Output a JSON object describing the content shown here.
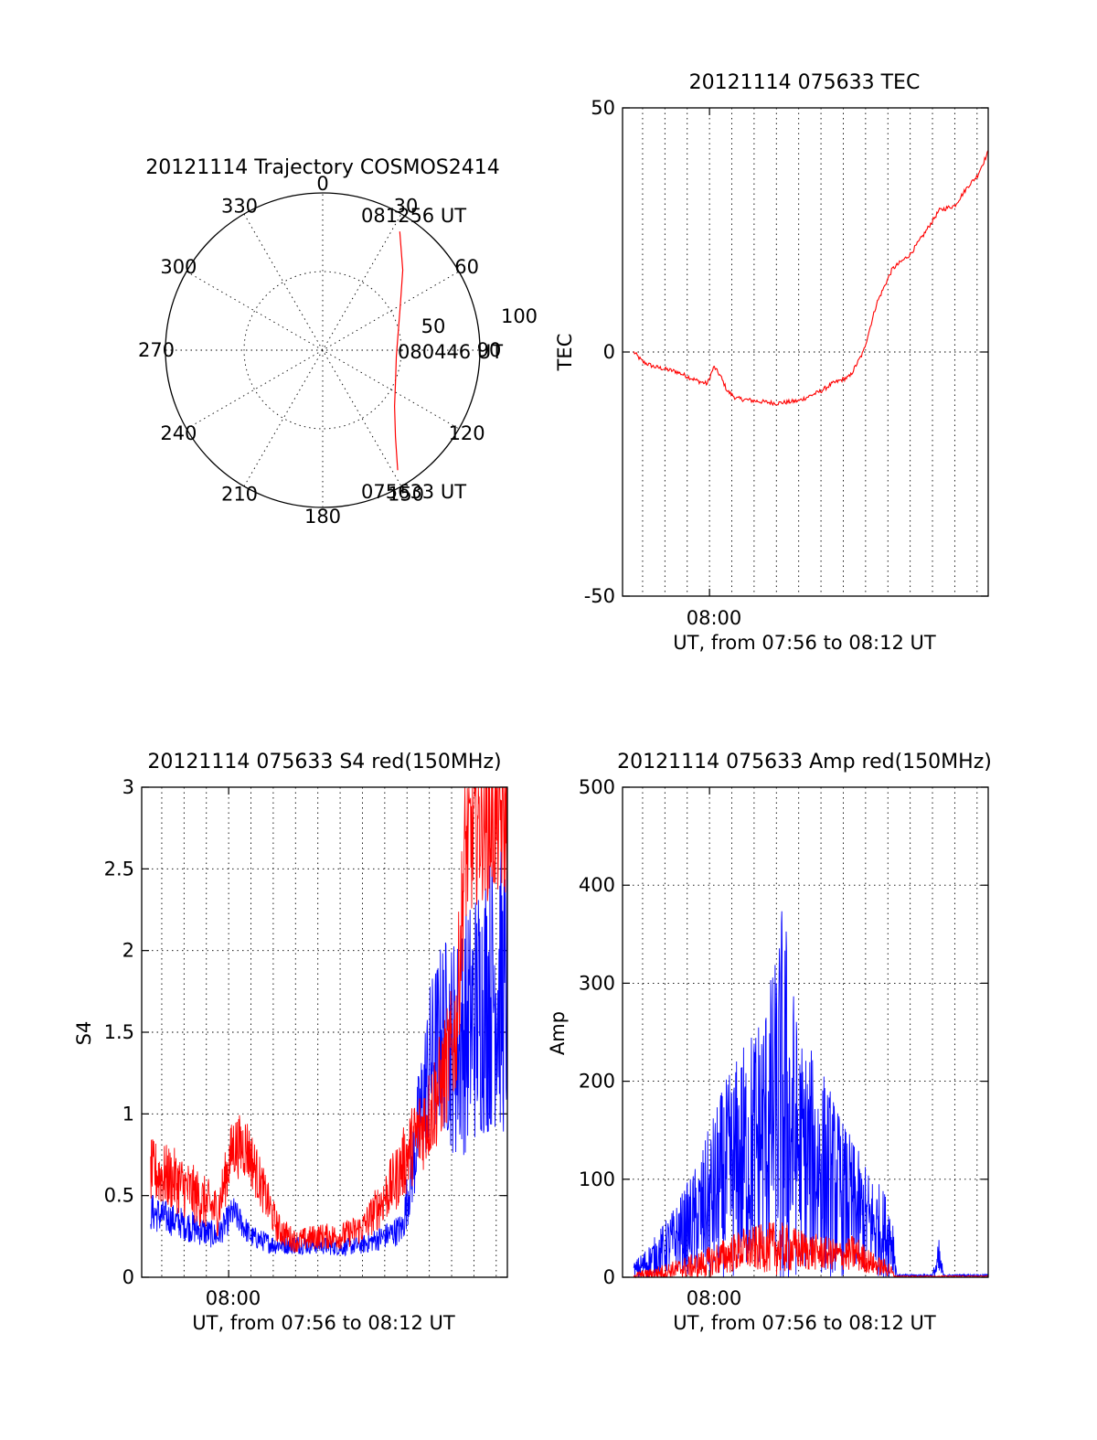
{
  "chart_data": [
    {
      "id": "polar",
      "type": "polar-trajectory",
      "title": "20121114 Trajectory COSMOS2414",
      "azimuth_labels": [
        "0",
        "30",
        "60",
        "90",
        "120",
        "150",
        "180",
        "210",
        "240",
        "270",
        "300",
        "330"
      ],
      "radial_labels": [
        "50",
        "100"
      ],
      "rlim": [
        0,
        100
      ],
      "trajectory": {
        "color": "#ff0000",
        "start_label": "075633 UT",
        "mid_label": "080446 UT",
        "end_label": "081256 UT",
        "points": [
          {
            "az": 148,
            "zen": 90
          },
          {
            "az": 140,
            "zen": 72
          },
          {
            "az": 128,
            "zen": 58
          },
          {
            "az": 112,
            "zen": 50
          },
          {
            "az": 95,
            "zen": 47
          },
          {
            "az": 78,
            "zen": 49
          },
          {
            "az": 60,
            "zen": 57
          },
          {
            "az": 45,
            "zen": 72
          },
          {
            "az": 33,
            "zen": 90
          }
        ]
      }
    },
    {
      "id": "tec",
      "type": "line",
      "title": "20121114 075633 TEC",
      "xlabel": "UT, from 07:56 to 08:12 UT",
      "ylabel": "TEC",
      "xlim": [
        -3.9,
        12.5
      ],
      "ylim": [
        -50,
        50
      ],
      "yticks": [
        -50,
        0,
        50
      ],
      "xtick_label": "08:00",
      "grid": true,
      "series": [
        {
          "color": "#ff0000",
          "x": [
            -3.4,
            -3.0,
            -2.5,
            -1.5,
            -0.5,
            -0.1,
            0.2,
            0.5,
            0.8,
            1.2,
            2.0,
            3.0,
            4.0,
            5.0,
            5.5,
            6.3,
            6.9,
            7.5,
            8.2,
            9.0,
            9.6,
            10.3,
            11.0,
            11.6,
            12.0,
            12.5
          ],
          "y": [
            0,
            -2,
            -3,
            -4,
            -6,
            -6.5,
            -3,
            -5,
            -8,
            -9.5,
            -10,
            -10.5,
            -10,
            -8,
            -6.5,
            -5,
            0,
            10,
            17,
            20,
            24,
            29,
            30,
            34,
            36,
            41
          ]
        }
      ]
    },
    {
      "id": "s4",
      "type": "line",
      "title": "20121114 075633 S4 red(150MHz)",
      "xlabel": "UT, from 07:56 to 08:12 UT",
      "ylabel": "S4",
      "xlim": [
        -3.9,
        12.5
      ],
      "ylim": [
        0,
        3
      ],
      "yticks": [
        0,
        0.5,
        1,
        1.5,
        2,
        2.5,
        3
      ],
      "xtick_label": "08:00",
      "grid": true,
      "series": [
        {
          "color": "#0000ff",
          "x": [
            -3.5,
            -2.5,
            -1.5,
            -0.5,
            0.2,
            1.0,
            2.0,
            3.0,
            4.0,
            5.0,
            6.0,
            7.0,
            7.8,
            8.5,
            9.0,
            9.6,
            10.2,
            11.0,
            12.0,
            12.5
          ],
          "y": [
            0.4,
            0.35,
            0.3,
            0.25,
            0.4,
            0.25,
            0.2,
            0.2,
            0.2,
            0.18,
            0.2,
            0.25,
            0.3,
            0.9,
            1.3,
            1.5,
            1.4,
            1.6,
            1.8,
            1.7
          ],
          "amp": [
            0.12,
            0.1,
            0.1,
            0.08,
            0.1,
            0.07,
            0.06,
            0.06,
            0.06,
            0.05,
            0.06,
            0.08,
            0.1,
            0.35,
            0.5,
            0.6,
            0.7,
            0.8,
            0.9,
            0.9
          ]
        },
        {
          "color": "#ff0000",
          "x": [
            -3.5,
            -2.5,
            -1.5,
            -0.5,
            0.2,
            0.8,
            1.5,
            2.2,
            3.0,
            4.0,
            5.0,
            6.0,
            6.8,
            7.5,
            8.2,
            9.0,
            9.6,
            10.2,
            10.6,
            11.2,
            12.0,
            12.5
          ],
          "y": [
            0.65,
            0.6,
            0.5,
            0.4,
            0.8,
            0.8,
            0.55,
            0.3,
            0.22,
            0.25,
            0.25,
            0.3,
            0.45,
            0.6,
            0.8,
            1.0,
            1.2,
            1.5,
            2.6,
            2.8,
            2.8,
            2.8
          ],
          "amp": [
            0.2,
            0.2,
            0.18,
            0.15,
            0.2,
            0.2,
            0.15,
            0.1,
            0.07,
            0.08,
            0.08,
            0.1,
            0.15,
            0.2,
            0.25,
            0.3,
            0.35,
            0.4,
            0.5,
            0.5,
            0.5,
            0.5
          ]
        }
      ]
    },
    {
      "id": "amp",
      "type": "line",
      "title": "20121114 075633 Amp red(150MHz)",
      "xlabel": "UT, from 07:56 to 08:12 UT",
      "ylabel": "Amp",
      "xlim": [
        -3.9,
        12.5
      ],
      "ylim": [
        0,
        500
      ],
      "yticks": [
        0,
        100,
        200,
        300,
        400,
        500
      ],
      "xtick_label": "08:00",
      "grid": true,
      "series": [
        {
          "color": "#0000ff",
          "x": [
            -3.4,
            -2.5,
            -1.5,
            -0.5,
            0.5,
            1.5,
            2.5,
            3.0,
            3.3,
            4.0,
            5.0,
            6.0,
            7.0,
            7.5,
            8.2,
            8.4,
            9.0,
            10.0,
            10.3,
            10.5,
            11.0,
            12.0,
            12.5
          ],
          "y": [
            5,
            20,
            40,
            60,
            90,
            120,
            150,
            170,
            170,
            130,
            110,
            80,
            60,
            50,
            40,
            2,
            2,
            2,
            15,
            2,
            2,
            2,
            2
          ],
          "amp": [
            10,
            20,
            35,
            60,
            100,
            120,
            140,
            160,
            230,
            120,
            110,
            80,
            55,
            50,
            40,
            1,
            1,
            1,
            25,
            1,
            1,
            1,
            1
          ]
        },
        {
          "color": "#ff0000",
          "x": [
            -3.4,
            -2.5,
            -1.5,
            -0.5,
            0.5,
            1.5,
            2.5,
            3.0,
            4.0,
            5.0,
            6.0,
            6.5,
            7.0,
            7.5,
            8.1,
            8.3,
            12.5
          ],
          "y": [
            2,
            4,
            8,
            12,
            20,
            28,
            30,
            30,
            28,
            25,
            22,
            25,
            18,
            12,
            8,
            1,
            1
          ],
          "amp": [
            3,
            6,
            10,
            14,
            18,
            22,
            25,
            28,
            22,
            18,
            15,
            20,
            14,
            10,
            8,
            0.5,
            0.5
          ]
        }
      ]
    }
  ]
}
